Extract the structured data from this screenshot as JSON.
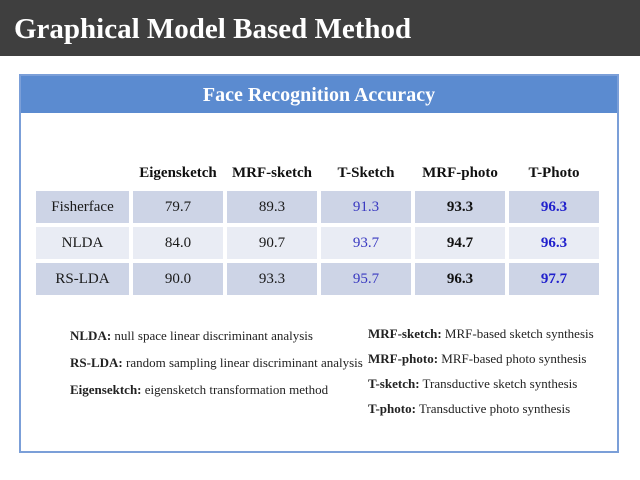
{
  "title": "Graphical Model Based Method",
  "panel": {
    "header": "Face Recognition Accuracy"
  },
  "table": {
    "columns": [
      "",
      "Eigensketch",
      "MRF-sketch",
      "T-Sketch",
      "MRF-photo",
      "T-Photo"
    ],
    "rows": [
      {
        "label": "Fisherface",
        "values": [
          "79.7",
          "89.3",
          "91.3",
          "93.3",
          "96.3"
        ]
      },
      {
        "label": "NLDA",
        "values": [
          "84.0",
          "90.7",
          "93.7",
          "94.7",
          "96.3"
        ]
      },
      {
        "label": "RS-LDA",
        "values": [
          "90.0",
          "93.3",
          "95.7",
          "96.3",
          "97.7"
        ]
      }
    ]
  },
  "footnotes": {
    "left": [
      {
        "term": "NLDA:",
        "desc": " null space linear discriminant analysis"
      },
      {
        "term": "RS-LDA:",
        "desc": " random sampling linear discriminant analysis"
      },
      {
        "term": "Eigensektch:",
        "desc": " eigensketch transformation method"
      }
    ],
    "right": [
      {
        "term": "MRF-sketch:",
        "desc": " MRF-based sketch synthesis"
      },
      {
        "term": "MRF-photo:",
        "desc": " MRF-based photo synthesis"
      },
      {
        "term": "T-sketch:",
        "desc": " Transductive sketch synthesis"
      },
      {
        "term": "T-photo:",
        "desc": " Transductive photo synthesis"
      }
    ]
  },
  "colors": {
    "title_bar_bg": "#3f3f3f",
    "panel_header_bg": "#5b8bd0",
    "panel_border": "#7b9fd8",
    "row_band_dark": "#cdd4e6",
    "row_band_light": "#e9ecf4",
    "value_blue": "#3838c0",
    "value_blue_bold": "#2020cc"
  }
}
